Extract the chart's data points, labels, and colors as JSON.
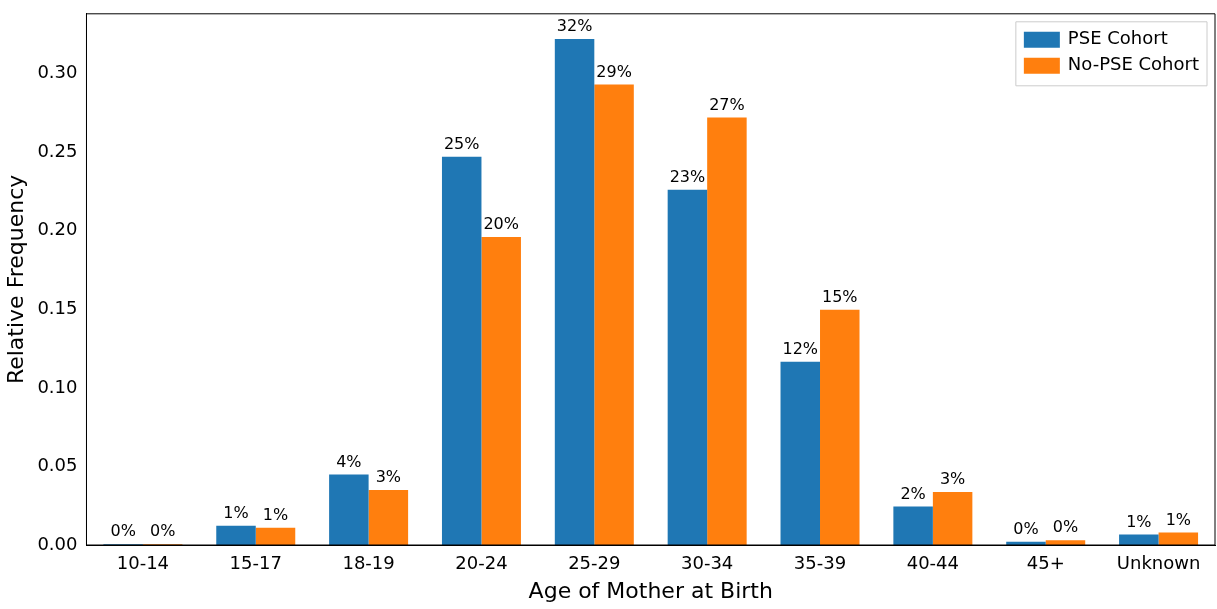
{
  "chart_data": {
    "type": "bar",
    "xlabel": "Age of Mother at Birth",
    "ylabel": "Relative Frequency",
    "categories": [
      "10-14",
      "15-17",
      "18-19",
      "20-24",
      "25-29",
      "30-34",
      "35-39",
      "40-44",
      "45+",
      "Unknown"
    ],
    "series": [
      {
        "name": "PSE Cohort",
        "color": "#1f77b4",
        "values": [
          0.0005,
          0.0123,
          0.0448,
          0.247,
          0.322,
          0.226,
          0.1166,
          0.0245,
          0.002,
          0.0067
        ],
        "value_labels": [
          "0%",
          "1%",
          "4%",
          "25%",
          "32%",
          "23%",
          "12%",
          "2%",
          "0%",
          "1%"
        ]
      },
      {
        "name": "No-PSE Cohort",
        "color": "#ff7f0e",
        "values": [
          0.0005,
          0.011,
          0.035,
          0.196,
          0.293,
          0.272,
          0.1497,
          0.0337,
          0.003,
          0.008
        ],
        "value_labels": [
          "0%",
          "1%",
          "3%",
          "20%",
          "29%",
          "27%",
          "15%",
          "3%",
          "0%",
          "1%"
        ]
      }
    ],
    "ylim": [
      0,
      0.338
    ],
    "yticks": [
      {
        "value": 0,
        "label": "0.00"
      },
      {
        "value": 0.05,
        "label": "0.05"
      },
      {
        "value": 0.1,
        "label": "0.10"
      },
      {
        "value": 0.15,
        "label": "0.15"
      },
      {
        "value": 0.2,
        "label": "0.20"
      },
      {
        "value": 0.25,
        "label": "0.25"
      },
      {
        "value": 0.3,
        "label": "0.30"
      }
    ],
    "legend": "top right",
    "grid": false
  }
}
